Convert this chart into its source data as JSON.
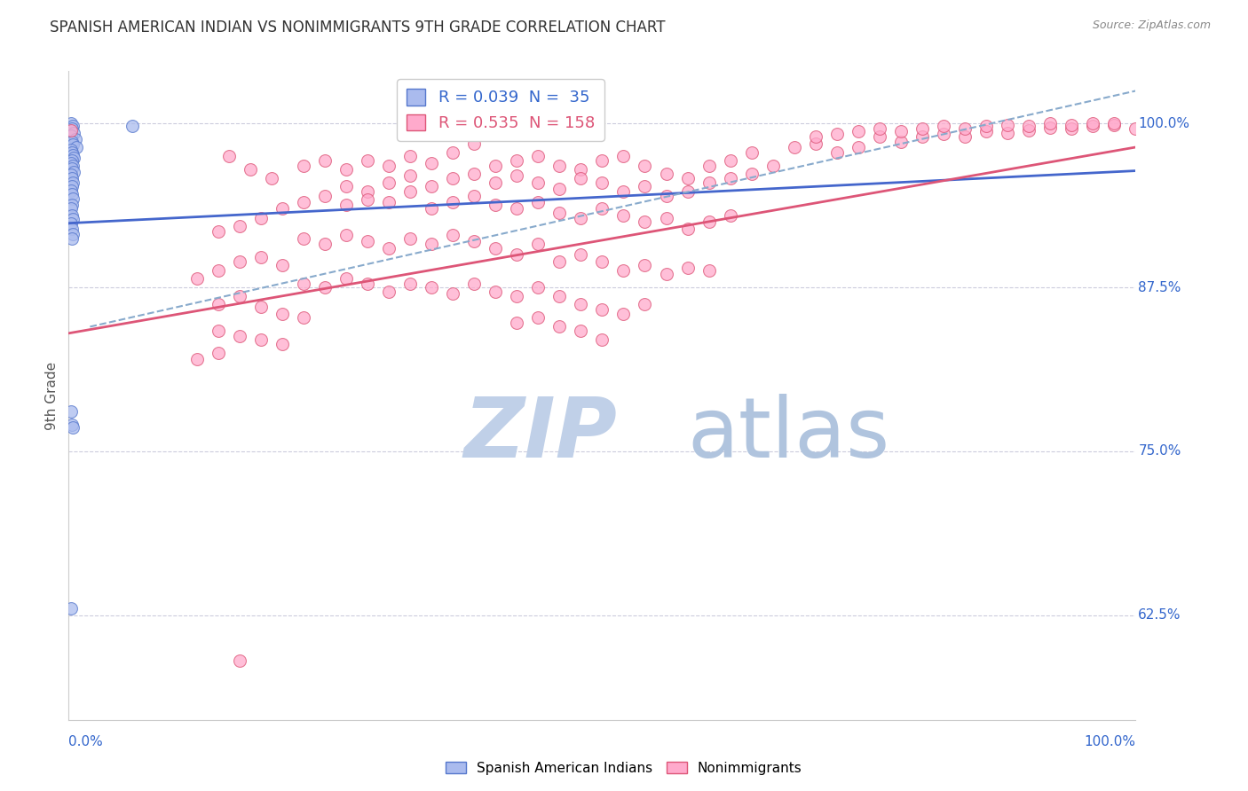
{
  "title": "SPANISH AMERICAN INDIAN VS NONIMMIGRANTS 9TH GRADE CORRELATION CHART",
  "source_text": "Source: ZipAtlas.com",
  "ylabel": "9th Grade",
  "y_ticks": [
    0.625,
    0.75,
    0.875,
    1.0
  ],
  "y_tick_labels": [
    "62.5%",
    "75.0%",
    "87.5%",
    "100.0%"
  ],
  "xmin": 0.0,
  "xmax": 1.0,
  "ymin": 0.545,
  "ymax": 1.04,
  "blue_scatter": [
    [
      0.002,
      1.0
    ],
    [
      0.004,
      0.998
    ],
    [
      0.003,
      0.996
    ],
    [
      0.005,
      0.993
    ],
    [
      0.002,
      0.991
    ],
    [
      0.006,
      0.988
    ],
    [
      0.003,
      0.986
    ],
    [
      0.004,
      0.984
    ],
    [
      0.007,
      0.982
    ],
    [
      0.002,
      0.98
    ],
    [
      0.003,
      0.978
    ],
    [
      0.004,
      0.976
    ],
    [
      0.005,
      0.974
    ],
    [
      0.003,
      0.972
    ],
    [
      0.002,
      0.97
    ],
    [
      0.004,
      0.968
    ],
    [
      0.003,
      0.966
    ],
    [
      0.005,
      0.963
    ],
    [
      0.002,
      0.961
    ],
    [
      0.003,
      0.958
    ],
    [
      0.004,
      0.955
    ],
    [
      0.003,
      0.952
    ],
    [
      0.002,
      0.949
    ],
    [
      0.003,
      0.946
    ],
    [
      0.004,
      0.943
    ],
    [
      0.003,
      0.938
    ],
    [
      0.002,
      0.935
    ],
    [
      0.003,
      0.93
    ],
    [
      0.004,
      0.927
    ],
    [
      0.002,
      0.924
    ],
    [
      0.003,
      0.92
    ],
    [
      0.004,
      0.916
    ],
    [
      0.003,
      0.912
    ],
    [
      0.002,
      0.78
    ],
    [
      0.003,
      0.77
    ],
    [
      0.004,
      0.768
    ],
    [
      0.002,
      0.63
    ],
    [
      0.06,
      0.998
    ]
  ],
  "blue_line": [
    [
      0.0,
      0.924
    ],
    [
      1.0,
      0.964
    ]
  ],
  "blue_dashed_line": [
    [
      0.02,
      0.845
    ],
    [
      1.0,
      1.025
    ]
  ],
  "pink_scatter": [
    [
      0.002,
      0.995
    ],
    [
      0.15,
      0.975
    ],
    [
      0.17,
      0.965
    ],
    [
      0.19,
      0.958
    ],
    [
      0.22,
      0.968
    ],
    [
      0.24,
      0.972
    ],
    [
      0.26,
      0.965
    ],
    [
      0.28,
      0.972
    ],
    [
      0.3,
      0.968
    ],
    [
      0.32,
      0.975
    ],
    [
      0.34,
      0.97
    ],
    [
      0.36,
      0.978
    ],
    [
      0.38,
      0.985
    ],
    [
      0.4,
      0.968
    ],
    [
      0.42,
      0.972
    ],
    [
      0.44,
      0.975
    ],
    [
      0.46,
      0.968
    ],
    [
      0.48,
      0.965
    ],
    [
      0.5,
      0.972
    ],
    [
      0.52,
      0.975
    ],
    [
      0.54,
      0.968
    ],
    [
      0.56,
      0.962
    ],
    [
      0.58,
      0.958
    ],
    [
      0.6,
      0.968
    ],
    [
      0.62,
      0.972
    ],
    [
      0.64,
      0.978
    ],
    [
      0.66,
      0.968
    ],
    [
      0.68,
      0.982
    ],
    [
      0.7,
      0.985
    ],
    [
      0.72,
      0.978
    ],
    [
      0.74,
      0.982
    ],
    [
      0.76,
      0.99
    ],
    [
      0.78,
      0.986
    ],
    [
      0.8,
      0.99
    ],
    [
      0.82,
      0.992
    ],
    [
      0.84,
      0.99
    ],
    [
      0.86,
      0.994
    ],
    [
      0.88,
      0.993
    ],
    [
      0.9,
      0.995
    ],
    [
      0.92,
      0.997
    ],
    [
      0.94,
      0.996
    ],
    [
      0.96,
      0.998
    ],
    [
      0.98,
      0.999
    ],
    [
      1.0,
      0.996
    ],
    [
      0.7,
      0.99
    ],
    [
      0.72,
      0.992
    ],
    [
      0.74,
      0.994
    ],
    [
      0.76,
      0.996
    ],
    [
      0.78,
      0.994
    ],
    [
      0.8,
      0.996
    ],
    [
      0.82,
      0.998
    ],
    [
      0.84,
      0.996
    ],
    [
      0.86,
      0.998
    ],
    [
      0.88,
      0.999
    ],
    [
      0.9,
      0.998
    ],
    [
      0.92,
      1.0
    ],
    [
      0.94,
      0.999
    ],
    [
      0.96,
      1.0
    ],
    [
      0.98,
      1.0
    ],
    [
      0.26,
      0.952
    ],
    [
      0.28,
      0.948
    ],
    [
      0.3,
      0.955
    ],
    [
      0.32,
      0.96
    ],
    [
      0.34,
      0.952
    ],
    [
      0.36,
      0.958
    ],
    [
      0.38,
      0.962
    ],
    [
      0.4,
      0.955
    ],
    [
      0.42,
      0.96
    ],
    [
      0.44,
      0.955
    ],
    [
      0.46,
      0.95
    ],
    [
      0.48,
      0.958
    ],
    [
      0.5,
      0.955
    ],
    [
      0.52,
      0.948
    ],
    [
      0.54,
      0.952
    ],
    [
      0.56,
      0.945
    ],
    [
      0.58,
      0.948
    ],
    [
      0.6,
      0.955
    ],
    [
      0.62,
      0.958
    ],
    [
      0.64,
      0.962
    ],
    [
      0.22,
      0.94
    ],
    [
      0.24,
      0.945
    ],
    [
      0.26,
      0.938
    ],
    [
      0.28,
      0.942
    ],
    [
      0.3,
      0.94
    ],
    [
      0.32,
      0.948
    ],
    [
      0.34,
      0.935
    ],
    [
      0.36,
      0.94
    ],
    [
      0.38,
      0.945
    ],
    [
      0.4,
      0.938
    ],
    [
      0.42,
      0.935
    ],
    [
      0.44,
      0.94
    ],
    [
      0.46,
      0.932
    ],
    [
      0.48,
      0.928
    ],
    [
      0.5,
      0.935
    ],
    [
      0.52,
      0.93
    ],
    [
      0.54,
      0.925
    ],
    [
      0.56,
      0.928
    ],
    [
      0.58,
      0.92
    ],
    [
      0.6,
      0.925
    ],
    [
      0.62,
      0.93
    ],
    [
      0.18,
      0.928
    ],
    [
      0.2,
      0.935
    ],
    [
      0.14,
      0.918
    ],
    [
      0.16,
      0.922
    ],
    [
      0.22,
      0.912
    ],
    [
      0.24,
      0.908
    ],
    [
      0.26,
      0.915
    ],
    [
      0.28,
      0.91
    ],
    [
      0.3,
      0.905
    ],
    [
      0.32,
      0.912
    ],
    [
      0.34,
      0.908
    ],
    [
      0.36,
      0.915
    ],
    [
      0.38,
      0.91
    ],
    [
      0.4,
      0.905
    ],
    [
      0.42,
      0.9
    ],
    [
      0.44,
      0.908
    ],
    [
      0.46,
      0.895
    ],
    [
      0.48,
      0.9
    ],
    [
      0.5,
      0.895
    ],
    [
      0.52,
      0.888
    ],
    [
      0.54,
      0.892
    ],
    [
      0.56,
      0.885
    ],
    [
      0.58,
      0.89
    ],
    [
      0.6,
      0.888
    ],
    [
      0.18,
      0.898
    ],
    [
      0.2,
      0.892
    ],
    [
      0.12,
      0.882
    ],
    [
      0.14,
      0.888
    ],
    [
      0.16,
      0.895
    ],
    [
      0.22,
      0.878
    ],
    [
      0.24,
      0.875
    ],
    [
      0.26,
      0.882
    ],
    [
      0.28,
      0.878
    ],
    [
      0.3,
      0.872
    ],
    [
      0.32,
      0.878
    ],
    [
      0.34,
      0.875
    ],
    [
      0.36,
      0.87
    ],
    [
      0.38,
      0.878
    ],
    [
      0.4,
      0.872
    ],
    [
      0.42,
      0.868
    ],
    [
      0.44,
      0.875
    ],
    [
      0.46,
      0.868
    ],
    [
      0.48,
      0.862
    ],
    [
      0.5,
      0.858
    ],
    [
      0.52,
      0.855
    ],
    [
      0.54,
      0.862
    ],
    [
      0.14,
      0.862
    ],
    [
      0.16,
      0.868
    ],
    [
      0.18,
      0.86
    ],
    [
      0.2,
      0.855
    ],
    [
      0.22,
      0.852
    ],
    [
      0.42,
      0.848
    ],
    [
      0.44,
      0.852
    ],
    [
      0.46,
      0.845
    ],
    [
      0.48,
      0.842
    ],
    [
      0.5,
      0.835
    ],
    [
      0.14,
      0.842
    ],
    [
      0.16,
      0.838
    ],
    [
      0.18,
      0.835
    ],
    [
      0.2,
      0.832
    ],
    [
      0.12,
      0.82
    ],
    [
      0.14,
      0.825
    ],
    [
      0.16,
      0.59
    ]
  ],
  "pink_line": [
    [
      0.0,
      0.84
    ],
    [
      1.0,
      0.982
    ]
  ],
  "title_color": "#333333",
  "title_fontsize": 12,
  "axis_label_color": "#555555",
  "tick_color": "#3366cc",
  "grid_color": "#ccccdd",
  "scatter_blue_facecolor": "#aabbee",
  "scatter_blue_edgecolor": "#5577cc",
  "scatter_pink_facecolor": "#ffaacc",
  "scatter_pink_edgecolor": "#dd5577",
  "blue_line_color": "#4466cc",
  "blue_dashed_color": "#88aacc",
  "pink_line_color": "#dd5577",
  "watermark_zip_color": "#c5d5e8",
  "watermark_atlas_color": "#b8cce4",
  "source_color": "#888888",
  "legend_blue_text": "#3366cc",
  "legend_pink_text": "#dd5577"
}
